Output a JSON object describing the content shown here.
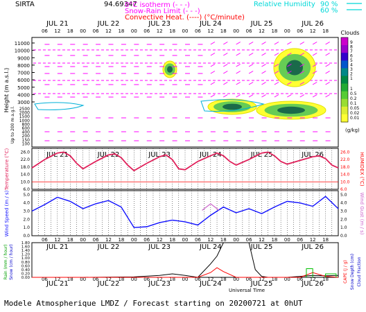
{
  "header": {
    "site": "SIRTA",
    "coords": "94.69347",
    "legend_left": [
      {
        "label": "0°C isotherm",
        "marker": "(- - -)",
        "color": "#ff00ff"
      },
      {
        "label": "Snow-Rain Limit",
        "marker": "(- - -)",
        "color": "#ff00ff"
      },
      {
        "label": "Convective Heat. (----) (°C/minute)",
        "marker": "",
        "color": "#ff0000"
      }
    ],
    "legend_right": [
      {
        "label": "Relative Humidity",
        "value": "90 %",
        "color": "#00d8d8"
      },
      {
        "label": "",
        "value": "60 %",
        "color": "#00d8d8"
      }
    ]
  },
  "days": [
    "JUL 21",
    "JUL 22",
    "JUL 23",
    "JUL 24",
    "JUL 25",
    "JUL 26"
  ],
  "hours": [
    "06",
    "12",
    "18",
    "00"
  ],
  "colors": {
    "grid": "#000000",
    "temperature": "#e0205a",
    "wind": "#1010ff",
    "gust": "#cc66cc",
    "cloud_fill": "#00b0d8",
    "isotherm": "#ff00ff",
    "wind_arrow": "#ff00ff",
    "humidex": "#ff0000",
    "rain": "#000000",
    "snow": "#00a000",
    "cape": "#ff0000",
    "cloud_fraction": "#00c000"
  },
  "cloud_panel": {
    "ylabel": "Height (m a.s.l.)",
    "ylabel2": "Up to 200 m a.g.l.",
    "yticks_upper": [
      "11000",
      "10000",
      "9000",
      "8000",
      "7000",
      "6000",
      "5000",
      "4000",
      "3000"
    ],
    "yticks_lower": [
      "2500",
      "2000",
      "1500",
      "1000",
      "800",
      "600",
      "400",
      "200",
      "150",
      "100"
    ],
    "colorbar_title": "Clouds",
    "colorbar_unit": "(g/kg)",
    "colorbar_levels": [
      "1",
      "0.5",
      "0.2",
      "0.1",
      "0.05",
      "0.02",
      "0.01"
    ],
    "colorbar_levels_upper": [
      "9",
      "8",
      "7",
      "6",
      "5",
      "4",
      "3",
      "2",
      "1"
    ]
  },
  "temp_panel": {
    "ylabel": "Temperature (°C)",
    "ylabel_right": "HUMIDEX (°C)",
    "yticks": [
      "26.0",
      "22.0",
      "18.0",
      "14.0",
      "10.0",
      "6.0"
    ],
    "ylim": [
      6,
      28
    ]
  },
  "wind_panel": {
    "ylabel": "Wind Speed (m / s)",
    "ylabel_right": "Wind Gust (m / s)",
    "yticks": [
      "5.0",
      "4.0",
      "3.0",
      "2.0",
      "1.0",
      "0.0"
    ],
    "ylim": [
      0,
      5.5
    ]
  },
  "precip_panel": {
    "ylabel": "Rain (mm / hour)",
    "ylabel2": "Snow (cm / hour)",
    "ylabel_right": "CAPE (J / g)",
    "ylabel_right2": "Snow Depth (cm)",
    "ylabel_right3": "Cloud Fraction",
    "yticks": [
      "1.80",
      "1.60",
      "1.40",
      "1.20",
      "1.00",
      "0.80",
      "0.60",
      "0.40",
      "0.20",
      "0.00"
    ],
    "xlabel": "Universal Time"
  },
  "footer": "Modele Atmospherique LMDZ / Forecast starting on 20200721 at 0hUT",
  "chart_data": [
    {
      "type": "line",
      "title": "",
      "xlabel": "",
      "ylabel": "Temperature (°C)",
      "ylim": [
        6,
        28
      ],
      "x_hours": [
        0,
        6,
        12,
        15,
        18,
        21,
        24,
        30,
        36,
        39,
        42,
        45,
        48,
        54,
        60,
        63,
        66,
        69,
        72,
        78,
        84,
        87,
        90,
        93,
        96,
        102,
        108,
        111,
        114,
        117,
        120,
        126,
        132,
        135,
        138,
        141,
        144
      ],
      "series": [
        {
          "values": [
            17.5,
            22.0,
            25.5,
            26.0,
            24.0,
            20.0,
            17.0,
            21.0,
            24.5,
            25.0,
            23.0,
            19.0,
            16.0,
            20.0,
            23.5,
            24.5,
            22.0,
            17.0,
            16.5,
            21.0,
            24.0,
            25.5,
            24.0,
            21.0,
            19.0,
            22.0,
            25.5,
            26.0,
            24.0,
            21.0,
            19.5,
            21.5,
            23.5,
            24.0,
            22.5,
            19.0,
            17.5
          ]
        }
      ]
    },
    {
      "type": "line",
      "title": "",
      "xlabel": "",
      "ylabel": "Wind Speed (m / s)",
      "ylim": [
        0,
        5.5
      ],
      "x_hours": [
        0,
        6,
        12,
        18,
        24,
        30,
        36,
        42,
        48,
        54,
        60,
        66,
        72,
        78,
        84,
        90,
        96,
        102,
        108,
        114,
        120,
        126,
        132,
        138,
        144
      ],
      "series": [
        {
          "values": [
            3.0,
            3.8,
            4.7,
            4.2,
            3.3,
            3.9,
            4.3,
            3.5,
            1.0,
            1.1,
            1.6,
            1.9,
            1.7,
            1.3,
            2.5,
            3.5,
            2.8,
            3.3,
            2.7,
            3.5,
            4.2,
            4.0,
            3.6,
            4.8,
            3.3
          ]
        },
        {
          "values": [
            null,
            null,
            null,
            null,
            null,
            null,
            null,
            null,
            null,
            null,
            null,
            null,
            null,
            null,
            3.9,
            null,
            null,
            null,
            null,
            null,
            null,
            null,
            null,
            null,
            null
          ]
        }
      ]
    },
    {
      "type": "line",
      "title": "",
      "xlabel": "Universal Time",
      "ylabel": "Rain (mm / hour)",
      "ylim": [
        0,
        1.8
      ],
      "x_hours": [
        0,
        24,
        48,
        60,
        66,
        72,
        78,
        84,
        87,
        90,
        96,
        102,
        105,
        108,
        111,
        114,
        120,
        126,
        132,
        138,
        144
      ],
      "series": [
        {
          "values": [
            0.0,
            0.0,
            0.02,
            0.1,
            0.18,
            0.1,
            0.0,
            0.7,
            1.1,
            1.8,
            1.8,
            1.8,
            0.4,
            0.05,
            0.0,
            0.0,
            0.0,
            0.05,
            0.1,
            0.08,
            0.1
          ]
        },
        {
          "values": [
            0.0,
            0.0,
            0.0,
            0.0,
            0.0,
            0.0,
            0.0,
            0.25,
            0.5,
            0.3,
            0.0,
            0.0,
            0.0,
            0.0,
            0.0,
            0.0,
            0.0,
            0.0,
            0.25,
            0.05,
            0.0
          ]
        }
      ]
    }
  ]
}
